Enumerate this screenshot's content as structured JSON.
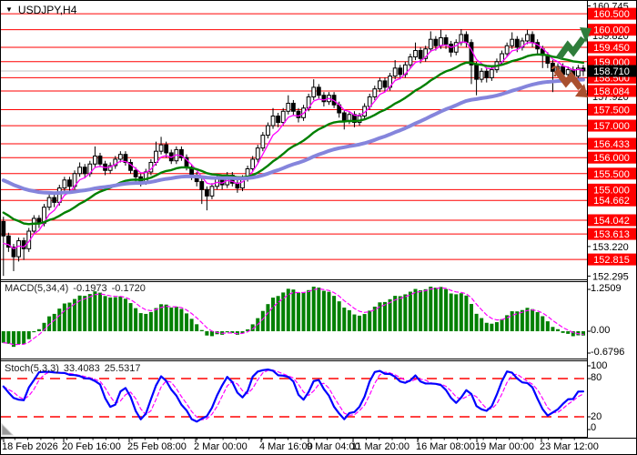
{
  "window": {
    "title": "USDJPY,H4"
  },
  "colors": {
    "background": "#FFFFFF",
    "level_line": "#FF0000",
    "level_badge_bg": "#FF0000",
    "level_badge_text": "#FFFFFF",
    "current_price_line": "#C0C0C0",
    "current_price_badge_bg": "#000000",
    "candle_up_fill": "#FFFFFF",
    "candle_down_fill": "#000000",
    "candle_outline": "#000000",
    "axis_text": "#000000"
  },
  "annotations": {
    "question_mark": "?",
    "up_arrow_color": "#2F7D3B",
    "down_arrow_color": "#A9502F"
  },
  "chart_data": {
    "type": "candlestick",
    "symbol": "USDJPY",
    "timeframe": "H4",
    "price_axis": {
      "visible_ticks": [
        "160.745",
        "159.820",
        "157.920",
        "153.220",
        "152.295"
      ],
      "tick_values": [
        160.745,
        159.82,
        157.92,
        153.22,
        152.295
      ],
      "levels": [
        {
          "label": "160.500",
          "value": 160.5
        },
        {
          "label": "160.000",
          "value": 160.0
        },
        {
          "label": "159.450",
          "value": 159.45
        },
        {
          "label": "159.000",
          "value": 159.0
        },
        {
          "label": "158.500",
          "value": 158.5
        },
        {
          "label": "158.084",
          "value": 158.084
        },
        {
          "label": "157.500",
          "value": 157.5
        },
        {
          "label": "157.000",
          "value": 157.0
        },
        {
          "label": "156.433",
          "value": 156.433
        },
        {
          "label": "156.000",
          "value": 156.0
        },
        {
          "label": "155.500",
          "value": 155.5
        },
        {
          "label": "155.000",
          "value": 155.0
        },
        {
          "label": "154.662",
          "value": 154.662
        },
        {
          "label": "154.042",
          "value": 154.042
        },
        {
          "label": "153.613",
          "value": 153.613
        },
        {
          "label": "152.815",
          "value": 152.815
        }
      ],
      "current_price": {
        "label": "158.710",
        "value": 158.71
      }
    },
    "x_axis": {
      "labels": [
        "18 Feb 2026",
        "20 Feb 16:00",
        "25 Feb 08:00",
        "2 Mar 00:00",
        "4 Mar 16:00",
        "9 Mar 04:00",
        "11 Mar 20:00",
        "16 Mar 08:00",
        "19 Mar 00:00",
        "23 Mar 12:00"
      ]
    },
    "overlays": {
      "moving_averages": [
        {
          "name": "fast-ma",
          "color": "#FF00FF",
          "width": 1.3
        },
        {
          "name": "mid-ma",
          "color": "#008000",
          "width": 2.4
        },
        {
          "name": "slow-ma",
          "color": "#8585DC",
          "width": 4
        }
      ]
    },
    "candles": [
      [
        154.0,
        154.15,
        152.3,
        153.55
      ],
      [
        153.55,
        153.65,
        153.05,
        153.2
      ],
      [
        153.2,
        153.3,
        152.45,
        152.9
      ],
      [
        152.9,
        153.5,
        152.75,
        153.4
      ],
      [
        153.4,
        153.5,
        152.8,
        153.15
      ],
      [
        153.15,
        153.8,
        153.05,
        153.7
      ],
      [
        153.7,
        154.2,
        153.6,
        154.1
      ],
      [
        154.1,
        154.2,
        153.8,
        153.95
      ],
      [
        153.95,
        154.55,
        153.85,
        154.45
      ],
      [
        154.45,
        154.85,
        154.35,
        154.75
      ],
      [
        154.75,
        154.85,
        154.45,
        154.6
      ],
      [
        154.6,
        155.15,
        154.5,
        155.05
      ],
      [
        155.05,
        155.4,
        154.95,
        155.3
      ],
      [
        155.3,
        155.4,
        154.95,
        155.1
      ],
      [
        155.1,
        155.6,
        155.0,
        155.5
      ],
      [
        155.5,
        155.85,
        155.4,
        155.7
      ],
      [
        155.7,
        155.8,
        155.35,
        155.5
      ],
      [
        155.5,
        155.9,
        155.4,
        155.8
      ],
      [
        155.8,
        156.35,
        155.7,
        156.05
      ],
      [
        156.05,
        156.15,
        155.7,
        155.8
      ],
      [
        155.8,
        155.9,
        155.45,
        155.6
      ],
      [
        155.6,
        155.85,
        155.5,
        155.75
      ],
      [
        155.75,
        156.05,
        155.65,
        155.95
      ],
      [
        155.95,
        156.2,
        155.85,
        156.1
      ],
      [
        156.1,
        156.2,
        155.75,
        155.85
      ],
      [
        155.85,
        155.95,
        155.5,
        155.6
      ],
      [
        155.6,
        155.7,
        155.2,
        155.4
      ],
      [
        155.4,
        155.5,
        155.1,
        155.25
      ],
      [
        155.25,
        155.65,
        155.15,
        155.55
      ],
      [
        155.55,
        155.95,
        155.45,
        155.85
      ],
      [
        155.85,
        156.5,
        155.75,
        156.2
      ],
      [
        156.2,
        156.65,
        156.1,
        156.4
      ],
      [
        156.4,
        156.5,
        156.0,
        156.15
      ],
      [
        156.15,
        156.25,
        155.8,
        155.9
      ],
      [
        155.9,
        156.35,
        155.8,
        156.25
      ],
      [
        156.25,
        156.35,
        155.9,
        156.0
      ],
      [
        156.0,
        156.1,
        155.6,
        155.7
      ],
      [
        155.7,
        155.8,
        155.3,
        155.45
      ],
      [
        155.45,
        155.55,
        155.1,
        155.25
      ],
      [
        155.25,
        155.35,
        154.55,
        155.0
      ],
      [
        155.0,
        155.1,
        154.35,
        154.8
      ],
      [
        154.8,
        155.2,
        154.7,
        155.1
      ],
      [
        155.1,
        155.45,
        155.0,
        155.35
      ],
      [
        155.35,
        155.45,
        155.0,
        155.15
      ],
      [
        155.15,
        155.55,
        155.05,
        155.45
      ],
      [
        155.45,
        155.55,
        155.1,
        155.2
      ],
      [
        155.2,
        155.3,
        154.9,
        155.05
      ],
      [
        155.05,
        155.45,
        154.95,
        155.35
      ],
      [
        155.35,
        155.75,
        155.25,
        155.65
      ],
      [
        155.65,
        156.05,
        155.55,
        155.95
      ],
      [
        155.95,
        156.4,
        155.85,
        156.3
      ],
      [
        156.3,
        156.8,
        156.2,
        156.7
      ],
      [
        156.7,
        157.1,
        156.6,
        157.0
      ],
      [
        157.0,
        157.55,
        156.9,
        157.3
      ],
      [
        157.3,
        157.4,
        156.95,
        157.1
      ],
      [
        157.1,
        157.55,
        157.0,
        157.45
      ],
      [
        157.45,
        157.95,
        157.35,
        157.7
      ],
      [
        157.7,
        157.8,
        157.3,
        157.45
      ],
      [
        157.45,
        157.55,
        157.1,
        157.25
      ],
      [
        157.25,
        157.65,
        157.15,
        157.55
      ],
      [
        157.55,
        158.0,
        157.45,
        157.9
      ],
      [
        157.9,
        158.45,
        157.8,
        158.2
      ],
      [
        158.2,
        158.3,
        157.85,
        157.95
      ],
      [
        157.95,
        158.05,
        157.6,
        157.75
      ],
      [
        157.75,
        158.05,
        157.65,
        157.95
      ],
      [
        157.95,
        158.05,
        157.55,
        157.65
      ],
      [
        157.65,
        157.75,
        157.25,
        157.4
      ],
      [
        157.4,
        157.5,
        156.88,
        157.15
      ],
      [
        157.15,
        157.45,
        157.05,
        157.35
      ],
      [
        157.35,
        157.45,
        156.95,
        157.1
      ],
      [
        157.1,
        157.4,
        157.0,
        157.3
      ],
      [
        157.3,
        157.7,
        157.2,
        157.6
      ],
      [
        157.6,
        158.0,
        157.5,
        157.9
      ],
      [
        157.9,
        158.25,
        157.8,
        158.15
      ],
      [
        158.15,
        158.5,
        158.05,
        158.4
      ],
      [
        158.4,
        158.5,
        158.05,
        158.2
      ],
      [
        158.2,
        158.65,
        158.1,
        158.55
      ],
      [
        158.55,
        159.05,
        158.45,
        158.8
      ],
      [
        158.8,
        158.9,
        158.45,
        158.6
      ],
      [
        158.6,
        159.0,
        158.5,
        158.9
      ],
      [
        158.9,
        159.25,
        158.8,
        159.15
      ],
      [
        159.15,
        159.6,
        159.05,
        159.35
      ],
      [
        159.35,
        159.45,
        158.95,
        159.1
      ],
      [
        159.1,
        159.5,
        159.0,
        159.4
      ],
      [
        159.4,
        159.95,
        159.3,
        159.7
      ],
      [
        159.7,
        159.8,
        159.35,
        159.5
      ],
      [
        159.5,
        160.0,
        159.4,
        159.75
      ],
      [
        159.75,
        159.85,
        159.4,
        159.55
      ],
      [
        159.55,
        159.65,
        159.15,
        159.3
      ],
      [
        159.3,
        159.7,
        159.2,
        159.6
      ],
      [
        159.6,
        160.02,
        159.5,
        159.85
      ],
      [
        159.85,
        159.95,
        159.45,
        159.6
      ],
      [
        159.6,
        159.7,
        158.3,
        158.9
      ],
      [
        158.9,
        159.0,
        157.95,
        158.45
      ],
      [
        158.45,
        158.8,
        158.35,
        158.7
      ],
      [
        158.7,
        158.8,
        158.35,
        158.5
      ],
      [
        158.5,
        158.85,
        158.4,
        158.75
      ],
      [
        158.75,
        159.1,
        158.65,
        159.0
      ],
      [
        159.0,
        159.35,
        158.9,
        159.25
      ],
      [
        159.25,
        159.6,
        159.15,
        159.5
      ],
      [
        159.5,
        159.92,
        159.4,
        159.7
      ],
      [
        159.7,
        159.8,
        159.3,
        159.45
      ],
      [
        159.45,
        159.75,
        159.35,
        159.65
      ],
      [
        159.65,
        160.0,
        159.55,
        159.85
      ],
      [
        159.85,
        159.95,
        159.45,
        159.6
      ],
      [
        159.6,
        159.7,
        159.25,
        159.4
      ],
      [
        159.4,
        159.5,
        158.8,
        159.2
      ],
      [
        159.2,
        159.3,
        158.8,
        158.95
      ],
      [
        158.95,
        159.05,
        158.05,
        158.7
      ],
      [
        158.7,
        158.95,
        158.6,
        158.85
      ],
      [
        158.85,
        158.95,
        158.45,
        158.6
      ],
      [
        158.6,
        158.85,
        158.5,
        158.75
      ],
      [
        158.75,
        158.85,
        158.4,
        158.55
      ],
      [
        158.55,
        158.9,
        158.45,
        158.8
      ],
      [
        158.8,
        158.9,
        158.55,
        158.71
      ]
    ],
    "indicators": {
      "macd": {
        "label": "MACD(5,34,4)",
        "values": [
          "-0.1973",
          "-0.1720"
        ],
        "scale": [
          "1.2509",
          "0.00",
          "-0.6796"
        ],
        "histogram_color": "#008000",
        "signal_color": "#FF00FF"
      },
      "stochastic": {
        "label": "Stoch(5,3,3)",
        "values": [
          "33.4083",
          "25.5317"
        ],
        "scale": [
          "100",
          "80",
          "20",
          "0"
        ],
        "levels": [
          80,
          20
        ],
        "k_color": "#0000FF",
        "d_color": "#FF00FF",
        "level_color": "#FF0000"
      }
    }
  }
}
